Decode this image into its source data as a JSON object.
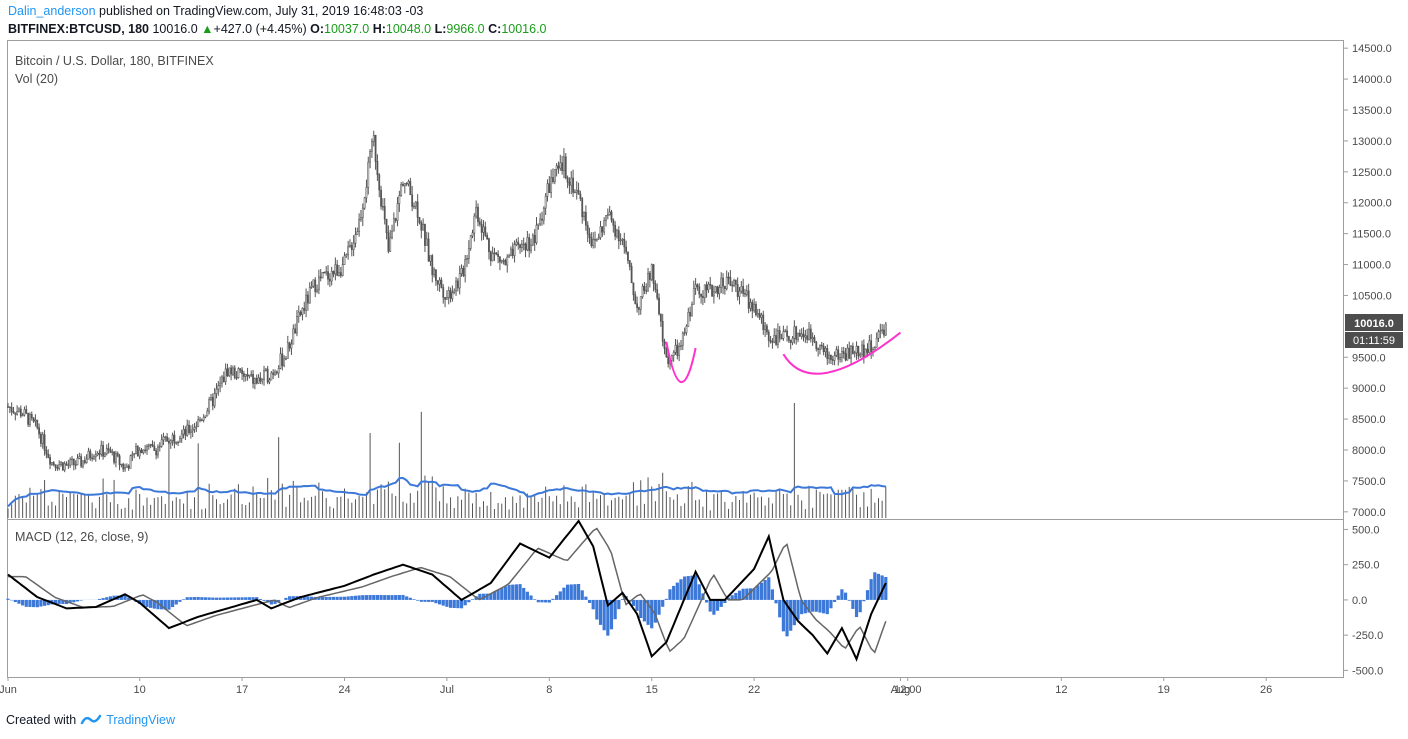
{
  "header": {
    "author": "Dalin_anderson",
    "published_text": "published on TradingView.com, July 31, 2019 16:48:03 -03",
    "symbol": "BITFINEX:BTCUSD, 180",
    "last": "10016.0",
    "change": "+427.0 (+4.45%)",
    "o_label": "O:",
    "o_val": "10037.0",
    "h_label": "H:",
    "h_val": "10048.0",
    "l_label": "L:",
    "l_val": "9966.0",
    "c_label": "C:",
    "c_val": "10016.0",
    "up_arrow": "▲"
  },
  "price_pane": {
    "title": "Bitcoin / U.S. Dollar, 180, BITFINEX",
    "vol_label": "Vol (20)",
    "last_price_tag": "10016.0",
    "countdown_tag": "01:11:59"
  },
  "macd_pane": {
    "title": "MACD (12, 26, close, 9)"
  },
  "footer": {
    "created_with": "Created with",
    "brand": "TradingView"
  },
  "colors": {
    "candles": "#555555",
    "volume_bars": "#555555",
    "volume_ma": "#3c78d8",
    "macd_line": "#000000",
    "signal_line": "#666666",
    "histogram": "#3c78d8",
    "annotation": "#ff33cc",
    "tag_bg": "#4d4d4d",
    "brand": "#2196f3"
  },
  "chart_data": [
    {
      "type": "candlestick",
      "title": "Bitcoin / U.S. Dollar, 180, BITFINEX",
      "y_ticks": [
        7000,
        7500,
        8000,
        8500,
        9000,
        9500,
        10500,
        11000,
        11500,
        12000,
        12500,
        13000,
        13500,
        14000,
        14500
      ],
      "y_tick_labels": [
        "7000.0",
        "7500.0",
        "8000.0",
        "8500.0",
        "9000.0",
        "9500.0",
        "10500.0",
        "11000.0",
        "11500.0",
        "12000.0",
        "12500.0",
        "13000.0",
        "13500.0",
        "14000.0",
        "14500.0"
      ],
      "ylim": [
        6900,
        14600
      ],
      "x_tick_labels": [
        "Jun",
        "10",
        "17",
        "24",
        "Jul",
        "8",
        "15",
        "22",
        "Aug",
        "12:00",
        "12",
        "19",
        "26"
      ],
      "x_tick_days": [
        0,
        9,
        16,
        23,
        30,
        37,
        44,
        51,
        61,
        61.5,
        72,
        79,
        86
      ],
      "x_start": "2019-06-01",
      "price_path": [
        [
          "2019-06-01",
          8700
        ],
        [
          "2019-06-02",
          8600
        ],
        [
          "2019-06-03",
          8350
        ],
        [
          "2019-06-04",
          7800
        ],
        [
          "2019-06-05",
          7750
        ],
        [
          "2019-06-06",
          7800
        ],
        [
          "2019-06-07",
          8000
        ],
        [
          "2019-06-08",
          7950
        ],
        [
          "2019-06-09",
          7700
        ],
        [
          "2019-06-10",
          8050
        ],
        [
          "2019-06-11",
          8000
        ],
        [
          "2019-06-12",
          8200
        ],
        [
          "2019-06-13",
          8250
        ],
        [
          "2019-06-14",
          8450
        ],
        [
          "2019-06-15",
          8800
        ],
        [
          "2019-06-16",
          9300
        ],
        [
          "2019-06-17",
          9200
        ],
        [
          "2019-06-18",
          9100
        ],
        [
          "2019-06-19",
          9250
        ],
        [
          "2019-06-20",
          9550
        ],
        [
          "2019-06-21",
          10200
        ],
        [
          "2019-06-22",
          10700
        ],
        [
          "2019-06-23",
          10850
        ],
        [
          "2019-06-24",
          11000
        ],
        [
          "2019-06-25",
          11700
        ],
        [
          "2019-06-26",
          13000
        ],
        [
          "2019-06-27",
          11200
        ],
        [
          "2019-06-28",
          12400
        ],
        [
          "2019-06-29",
          11900
        ],
        [
          "2019-06-30",
          10900
        ],
        [
          "2019-07-01",
          10500
        ],
        [
          "2019-07-02",
          10800
        ],
        [
          "2019-07-03",
          11900
        ],
        [
          "2019-07-04",
          11200
        ],
        [
          "2019-07-05",
          11000
        ],
        [
          "2019-07-06",
          11300
        ],
        [
          "2019-07-07",
          11400
        ],
        [
          "2019-07-08",
          12300
        ],
        [
          "2019-07-09",
          12600
        ],
        [
          "2019-07-10",
          12100
        ],
        [
          "2019-07-11",
          11300
        ],
        [
          "2019-07-12",
          11800
        ],
        [
          "2019-07-13",
          11400
        ],
        [
          "2019-07-14",
          10300
        ],
        [
          "2019-07-15",
          10900
        ],
        [
          "2019-07-16",
          9450
        ],
        [
          "2019-07-17",
          9650
        ],
        [
          "2019-07-18",
          10650
        ],
        [
          "2019-07-19",
          10550
        ],
        [
          "2019-07-20",
          10750
        ],
        [
          "2019-07-21",
          10600
        ],
        [
          "2019-07-22",
          10300
        ],
        [
          "2019-07-23",
          9850
        ],
        [
          "2019-07-24",
          9800
        ],
        [
          "2019-07-25",
          9900
        ],
        [
          "2019-07-26",
          9850
        ],
        [
          "2019-07-27",
          9500
        ],
        [
          "2019-07-28",
          9550
        ],
        [
          "2019-07-29",
          9600
        ],
        [
          "2019-07-30",
          9650
        ],
        [
          "2019-07-31",
          10016
        ]
      ],
      "annotations": [
        {
          "type": "arc",
          "color": "#ff33cc",
          "from": [
            "2019-07-16",
            9750
          ],
          "bottom": [
            "2019-07-17",
            9100
          ],
          "to": [
            "2019-07-18",
            9650
          ]
        },
        {
          "type": "arc",
          "color": "#ff33cc",
          "from": [
            "2019-07-24",
            9550
          ],
          "bottom": [
            "2019-07-27",
            9250
          ],
          "to": [
            "2019-08-01",
            9900
          ]
        }
      ]
    },
    {
      "type": "bar",
      "title": "Vol (20)",
      "note": "volume histogram with moving average overlay"
    },
    {
      "type": "line",
      "title": "MACD (12, 26, close, 9)",
      "y_ticks": [
        -500,
        -250,
        0,
        250,
        500
      ],
      "y_tick_labels": [
        "-500.0",
        "-250.0",
        "0.0",
        "250.0",
        "500.0"
      ],
      "ylim": [
        -540,
        560
      ],
      "macd_path": [
        [
          "2019-06-01",
          180
        ],
        [
          "2019-06-03",
          20
        ],
        [
          "2019-06-05",
          -60
        ],
        [
          "2019-06-07",
          -50
        ],
        [
          "2019-06-09",
          40
        ],
        [
          "2019-06-10",
          -20
        ],
        [
          "2019-06-12",
          -200
        ],
        [
          "2019-06-14",
          -120
        ],
        [
          "2019-06-16",
          -60
        ],
        [
          "2019-06-18",
          0
        ],
        [
          "2019-06-19",
          -60
        ],
        [
          "2019-06-21",
          20
        ],
        [
          "2019-06-24",
          100
        ],
        [
          "2019-06-26",
          180
        ],
        [
          "2019-06-28",
          250
        ],
        [
          "2019-06-30",
          180
        ],
        [
          "2019-07-02",
          0
        ],
        [
          "2019-07-04",
          120
        ],
        [
          "2019-07-06",
          400
        ],
        [
          "2019-07-08",
          300
        ],
        [
          "2019-07-10",
          560
        ],
        [
          "2019-07-11",
          380
        ],
        [
          "2019-07-12",
          -40
        ],
        [
          "2019-07-13",
          50
        ],
        [
          "2019-07-14",
          -100
        ],
        [
          "2019-07-15",
          -400
        ],
        [
          "2019-07-16",
          -300
        ],
        [
          "2019-07-18",
          200
        ],
        [
          "2019-07-19",
          0
        ],
        [
          "2019-07-20",
          0
        ],
        [
          "2019-07-22",
          220
        ],
        [
          "2019-07-23",
          450
        ],
        [
          "2019-07-24",
          0
        ],
        [
          "2019-07-25",
          -150
        ],
        [
          "2019-07-26",
          -250
        ],
        [
          "2019-07-27",
          -380
        ],
        [
          "2019-07-28",
          -200
        ],
        [
          "2019-07-29",
          -420
        ],
        [
          "2019-07-30",
          -100
        ],
        [
          "2019-07-31",
          120
        ]
      ]
    }
  ]
}
